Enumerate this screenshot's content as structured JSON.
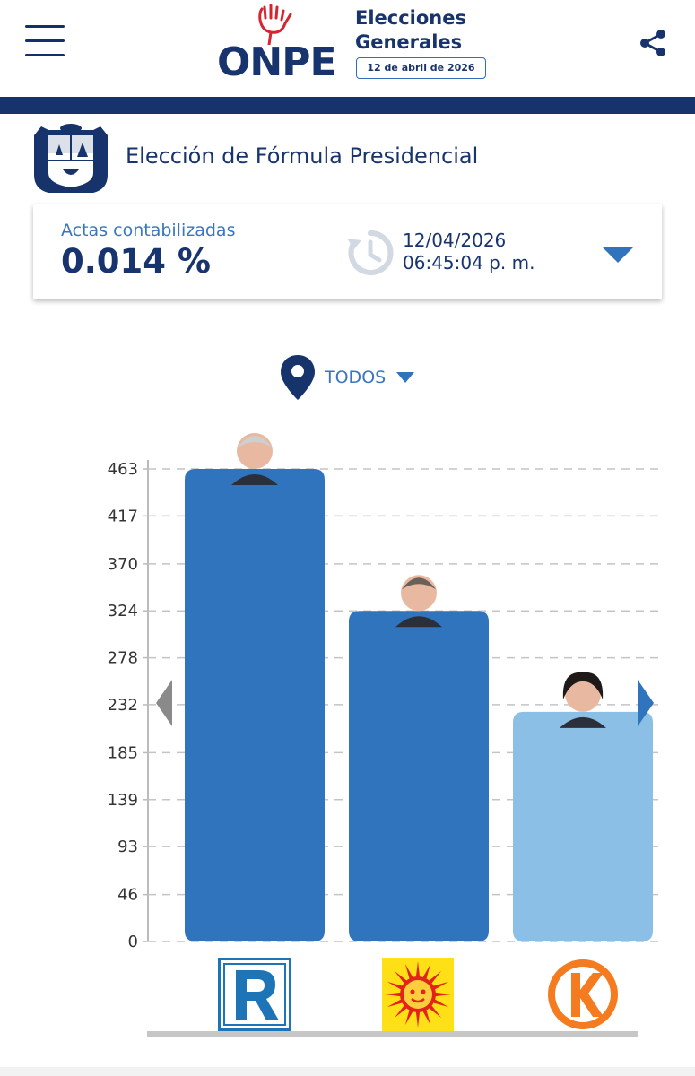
{
  "header": {
    "logo_text": "ONPE",
    "title_line1": "Elecciones",
    "title_line2": "Generales",
    "date_badge": "12 de abril de 2026",
    "menu_icon": "hamburger-icon",
    "share_icon": "share-icon"
  },
  "election": {
    "title": "Elección de Fórmula Presidencial",
    "emblem_icon": "peru-coat-of-arms-icon"
  },
  "actas": {
    "label": "Actas contabilizadas",
    "value": "0.014 %",
    "date": "12/04/2026",
    "time": "06:45:04 p. m.",
    "clock_icon": "history-clock-icon",
    "dropdown_icon": "caret-down-icon"
  },
  "location": {
    "label": "TODOS",
    "icon": "location-pin-icon"
  },
  "colors": {
    "navy": "#17336c",
    "accent_blue": "#2f74bd",
    "light_blue": "#8bbfe6",
    "gray_arrow": "#8a8a8a"
  },
  "chart_data": {
    "type": "bar",
    "categories": [
      "R",
      "Sol",
      "K"
    ],
    "values": [
      463,
      324,
      225
    ],
    "ylim": [
      0,
      463
    ],
    "yticks": [
      0,
      46,
      93,
      139,
      185,
      232,
      278,
      324,
      370,
      417,
      463
    ],
    "bar_colors": [
      "#2f74bd",
      "#2f74bd",
      "#8bbfe6"
    ],
    "grid": true
  },
  "parties": [
    {
      "icon": "party-r-logo-icon"
    },
    {
      "icon": "party-sun-logo-icon"
    },
    {
      "icon": "party-k-logo-icon"
    }
  ],
  "nav": {
    "prev_icon": "arrow-left-icon",
    "next_icon": "arrow-right-icon"
  }
}
